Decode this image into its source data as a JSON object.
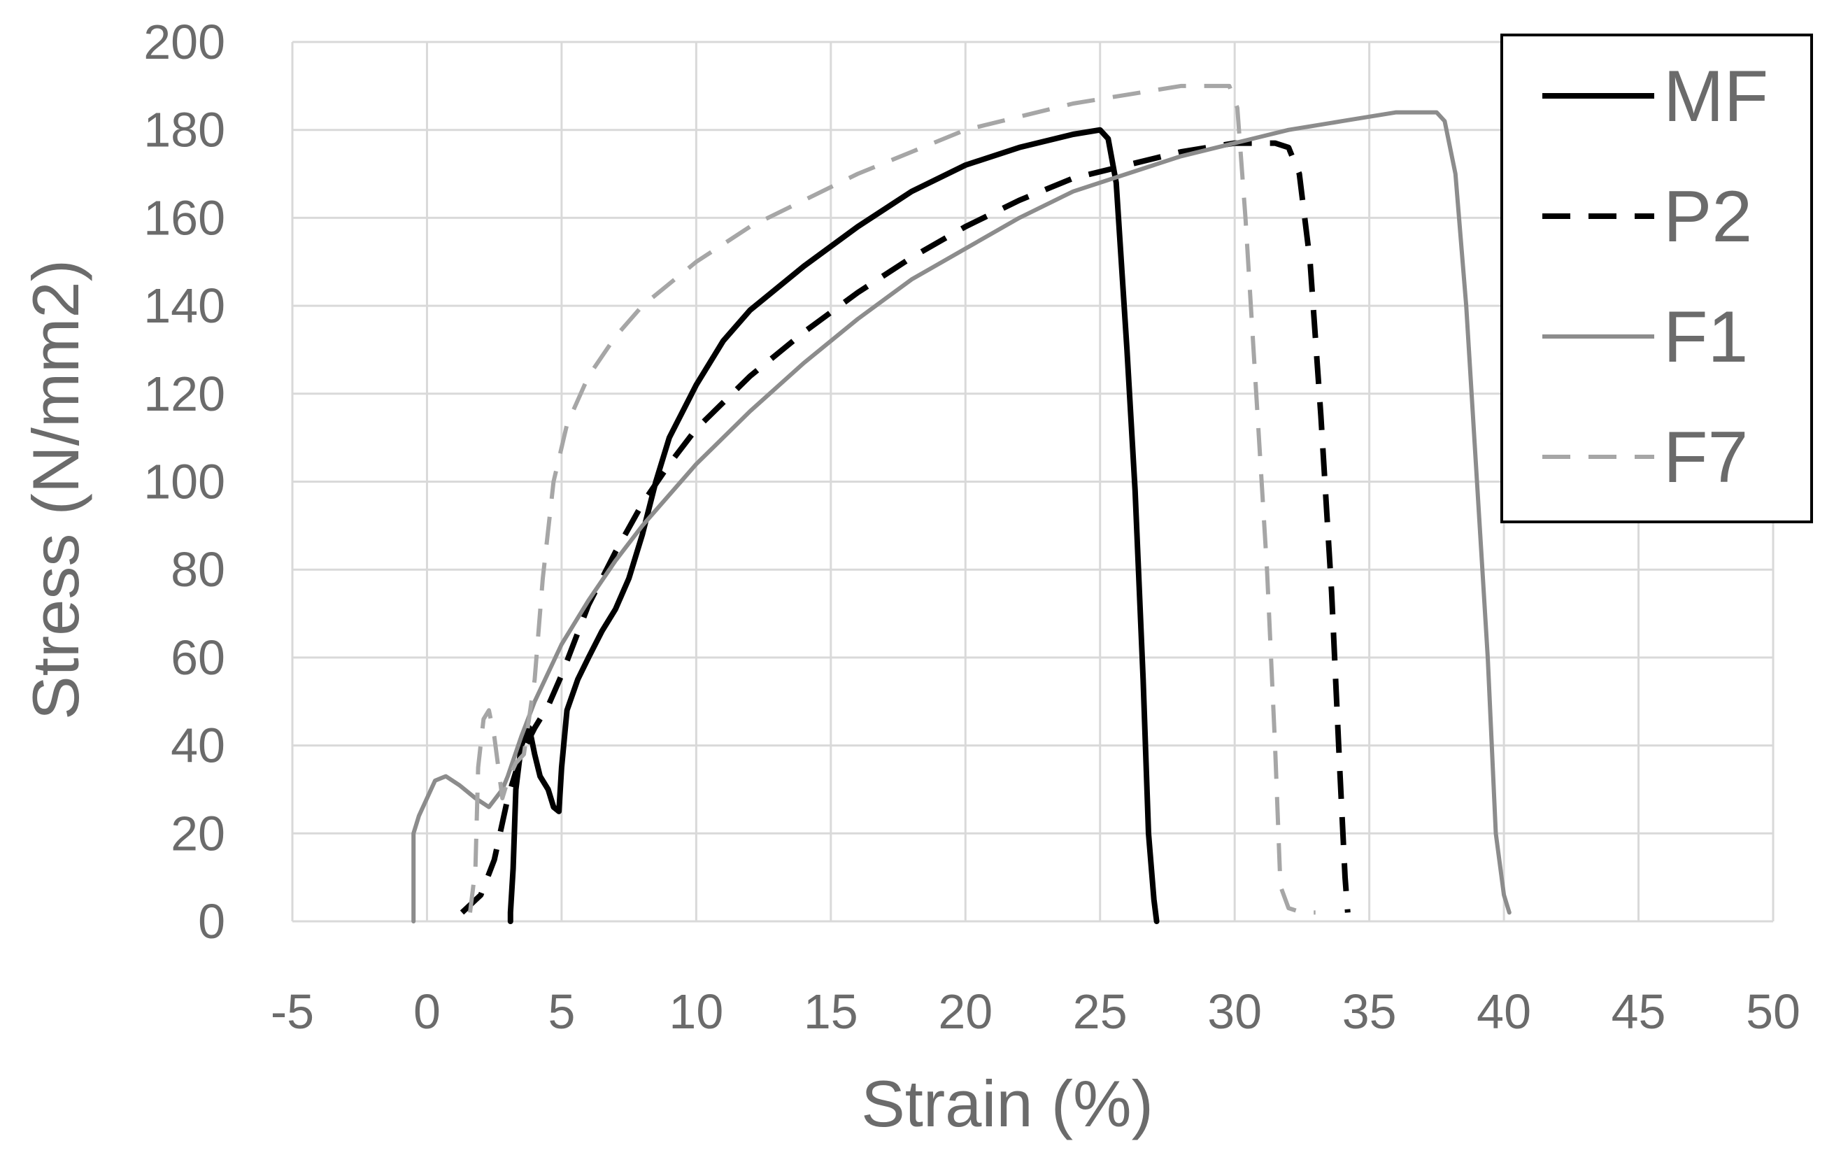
{
  "chart_data": {
    "type": "line",
    "xlabel": "Strain (%)",
    "ylabel": "Stress (N/mm2)",
    "xlim": [
      -5,
      50
    ],
    "ylim": [
      0,
      200
    ],
    "x_ticks": [
      "-5",
      "0",
      "5",
      "10",
      "15",
      "20",
      "25",
      "30",
      "35",
      "40",
      "45",
      "50"
    ],
    "y_ticks": [
      "0",
      "20",
      "40",
      "60",
      "80",
      "100",
      "120",
      "140",
      "160",
      "180",
      "200"
    ],
    "grid": true,
    "legend_position": "top-right",
    "series": [
      {
        "name": "MF",
        "color": "#000000",
        "dash": "solid",
        "points": [
          [
            3.1,
            0
          ],
          [
            3.1,
            2
          ],
          [
            3.2,
            12
          ],
          [
            3.3,
            30
          ],
          [
            3.5,
            40
          ],
          [
            3.8,
            44
          ],
          [
            4.0,
            38
          ],
          [
            4.2,
            33
          ],
          [
            4.5,
            30
          ],
          [
            4.7,
            26
          ],
          [
            4.9,
            25
          ],
          [
            5.0,
            35
          ],
          [
            5.2,
            48
          ],
          [
            5.6,
            55
          ],
          [
            6.0,
            60
          ],
          [
            6.5,
            66
          ],
          [
            7.0,
            71
          ],
          [
            7.5,
            78
          ],
          [
            8.0,
            88
          ],
          [
            8.5,
            100
          ],
          [
            9.0,
            110
          ],
          [
            10.0,
            122
          ],
          [
            11.0,
            132
          ],
          [
            12.0,
            139
          ],
          [
            14.0,
            149
          ],
          [
            16.0,
            158
          ],
          [
            18.0,
            166
          ],
          [
            20.0,
            172
          ],
          [
            22.0,
            176
          ],
          [
            24.0,
            179
          ],
          [
            25.0,
            180
          ],
          [
            25.3,
            178
          ],
          [
            25.6,
            168
          ],
          [
            26.0,
            130
          ],
          [
            26.3,
            98
          ],
          [
            26.6,
            55
          ],
          [
            26.8,
            20
          ],
          [
            27.0,
            5
          ],
          [
            27.1,
            0
          ]
        ]
      },
      {
        "name": "P2",
        "color": "#000000",
        "dash": "dashed",
        "points": [
          [
            1.3,
            2
          ],
          [
            2.0,
            6
          ],
          [
            2.5,
            14
          ],
          [
            3.0,
            28
          ],
          [
            3.5,
            38
          ],
          [
            4.0,
            44
          ],
          [
            4.5,
            49
          ],
          [
            5.0,
            56
          ],
          [
            6.0,
            72
          ],
          [
            7.0,
            84
          ],
          [
            8.0,
            95
          ],
          [
            9.0,
            104
          ],
          [
            10.0,
            112
          ],
          [
            12.0,
            124
          ],
          [
            14.0,
            134
          ],
          [
            16.0,
            143
          ],
          [
            18.0,
            151
          ],
          [
            20.0,
            158
          ],
          [
            22.0,
            164
          ],
          [
            24.0,
            169
          ],
          [
            26.0,
            172
          ],
          [
            28.0,
            175
          ],
          [
            30.0,
            177
          ],
          [
            31.5,
            177
          ],
          [
            32.0,
            176
          ],
          [
            32.4,
            170
          ],
          [
            32.8,
            150
          ],
          [
            33.2,
            115
          ],
          [
            33.6,
            75
          ],
          [
            33.9,
            35
          ],
          [
            34.1,
            10
          ],
          [
            34.2,
            2
          ]
        ]
      },
      {
        "name": "F1",
        "color": "#8c8c8c",
        "dash": "solid",
        "points": [
          [
            -0.5,
            0
          ],
          [
            -0.5,
            20
          ],
          [
            -0.3,
            24
          ],
          [
            0.0,
            28
          ],
          [
            0.3,
            32
          ],
          [
            0.7,
            33
          ],
          [
            1.2,
            31
          ],
          [
            1.8,
            28
          ],
          [
            2.3,
            26
          ],
          [
            2.8,
            30
          ],
          [
            3.0,
            33
          ],
          [
            3.5,
            42
          ],
          [
            4.0,
            50
          ],
          [
            5.0,
            63
          ],
          [
            6.0,
            73
          ],
          [
            7.0,
            82
          ],
          [
            8.0,
            90
          ],
          [
            9.0,
            97
          ],
          [
            10.0,
            104
          ],
          [
            12.0,
            116
          ],
          [
            14.0,
            127
          ],
          [
            16.0,
            137
          ],
          [
            18.0,
            146
          ],
          [
            20.0,
            153
          ],
          [
            22.0,
            160
          ],
          [
            24.0,
            166
          ],
          [
            26.0,
            170
          ],
          [
            28.0,
            174
          ],
          [
            30.0,
            177
          ],
          [
            32.0,
            180
          ],
          [
            34.0,
            182
          ],
          [
            36.0,
            184
          ],
          [
            37.5,
            184
          ],
          [
            37.8,
            182
          ],
          [
            38.2,
            170
          ],
          [
            38.6,
            140
          ],
          [
            39.0,
            100
          ],
          [
            39.4,
            60
          ],
          [
            39.7,
            20
          ],
          [
            40.0,
            6
          ],
          [
            40.2,
            2
          ]
        ]
      },
      {
        "name": "F7",
        "color": "#a6a6a6",
        "dash": "dashed",
        "points": [
          [
            1.6,
            2
          ],
          [
            1.8,
            12
          ],
          [
            1.9,
            35
          ],
          [
            2.1,
            46
          ],
          [
            2.3,
            48
          ],
          [
            2.5,
            42
          ],
          [
            2.8,
            28
          ],
          [
            3.0,
            32
          ],
          [
            3.3,
            36
          ],
          [
            3.6,
            38
          ],
          [
            4.0,
            55
          ],
          [
            4.3,
            78
          ],
          [
            4.7,
            100
          ],
          [
            5.2,
            113
          ],
          [
            6.0,
            124
          ],
          [
            7.0,
            133
          ],
          [
            8.0,
            140
          ],
          [
            10.0,
            150
          ],
          [
            12.0,
            158
          ],
          [
            14.0,
            164
          ],
          [
            16.0,
            170
          ],
          [
            18.0,
            175
          ],
          [
            20.0,
            180
          ],
          [
            22.0,
            183
          ],
          [
            24.0,
            186
          ],
          [
            26.0,
            188
          ],
          [
            28.0,
            190
          ],
          [
            29.8,
            190
          ],
          [
            30.1,
            185
          ],
          [
            30.4,
            160
          ],
          [
            30.8,
            120
          ],
          [
            31.2,
            80
          ],
          [
            31.5,
            40
          ],
          [
            31.7,
            8
          ],
          [
            32.0,
            3
          ],
          [
            32.5,
            2
          ],
          [
            33.0,
            2
          ]
        ]
      }
    ]
  }
}
